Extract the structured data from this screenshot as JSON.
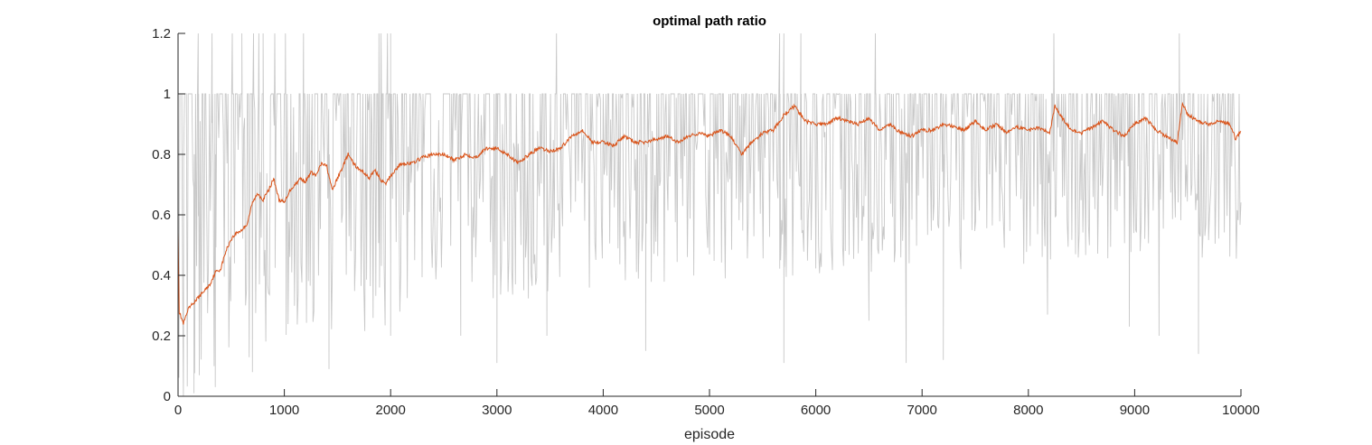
{
  "chart_data": {
    "type": "line",
    "title": "optimal path ratio",
    "xlabel": "episode",
    "ylabel": "",
    "xlim": [
      0,
      10000
    ],
    "ylim": [
      0,
      1.2
    ],
    "x_ticks": [
      0,
      1000,
      2000,
      3000,
      4000,
      5000,
      6000,
      7000,
      8000,
      9000,
      10000
    ],
    "y_ticks": [
      0,
      0.2,
      0.4,
      0.6,
      0.8,
      1,
      1.2
    ],
    "x_tick_labels": [
      "0",
      "1000",
      "2000",
      "3000",
      "4000",
      "5000",
      "6000",
      "7000",
      "8000",
      "9000",
      "10000"
    ],
    "y_tick_labels": [
      "0",
      "0.2",
      "0.4",
      "0.6",
      "0.8",
      "1",
      "1.2"
    ],
    "grid": false,
    "legend": "none",
    "series": [
      {
        "role": "raw",
        "color": "#c8c8c8",
        "envelope": {
          "x": [
            0,
            100,
            200,
            300,
            500,
            700,
            1000,
            1500,
            2000,
            2500,
            3000,
            4000,
            5000,
            6000,
            7000,
            8000,
            9000,
            10000
          ],
          "low": [
            0.02,
            0.02,
            0.03,
            0.05,
            0.08,
            0.12,
            0.15,
            0.2,
            0.22,
            0.28,
            0.3,
            0.35,
            0.38,
            0.4,
            0.42,
            0.42,
            0.45,
            0.45
          ],
          "high": [
            1,
            1,
            1,
            1,
            1,
            1,
            1,
            1,
            1,
            1,
            1,
            1,
            1,
            1,
            1,
            1,
            1,
            1
          ]
        },
        "spikes_above_1": [
          {
            "x": 190,
            "y": 1.2
          },
          {
            "x": 320,
            "y": 1.2
          },
          {
            "x": 510,
            "y": 1.2
          },
          {
            "x": 600,
            "y": 1.2
          },
          {
            "x": 710,
            "y": 1.2
          },
          {
            "x": 760,
            "y": 1.2
          },
          {
            "x": 800,
            "y": 1.2
          },
          {
            "x": 910,
            "y": 1.2
          },
          {
            "x": 1010,
            "y": 1.2
          },
          {
            "x": 1180,
            "y": 1.2
          },
          {
            "x": 1890,
            "y": 1.2
          },
          {
            "x": 1910,
            "y": 1.2
          },
          {
            "x": 1970,
            "y": 1.2
          },
          {
            "x": 2000,
            "y": 1.2
          },
          {
            "x": 3560,
            "y": 1.2
          },
          {
            "x": 5660,
            "y": 1.2
          },
          {
            "x": 5700,
            "y": 1.2
          },
          {
            "x": 5860,
            "y": 1.2
          },
          {
            "x": 6560,
            "y": 1.2
          },
          {
            "x": 8240,
            "y": 1.2
          },
          {
            "x": 9420,
            "y": 1.2
          }
        ],
        "deep_dips": [
          {
            "x": 50,
            "y": 0.0
          },
          {
            "x": 150,
            "y": 0.01
          },
          {
            "x": 350,
            "y": 0.03
          },
          {
            "x": 700,
            "y": 0.08
          },
          {
            "x": 1420,
            "y": 0.09
          },
          {
            "x": 2000,
            "y": 0.2
          },
          {
            "x": 2660,
            "y": 0.2
          },
          {
            "x": 3000,
            "y": 0.11
          },
          {
            "x": 3470,
            "y": 0.2
          },
          {
            "x": 4400,
            "y": 0.15
          },
          {
            "x": 5700,
            "y": 0.11
          },
          {
            "x": 6500,
            "y": 0.25
          },
          {
            "x": 6850,
            "y": 0.11
          },
          {
            "x": 7200,
            "y": 0.12
          },
          {
            "x": 8180,
            "y": 0.27
          },
          {
            "x": 8950,
            "y": 0.23
          },
          {
            "x": 9230,
            "y": 0.2
          },
          {
            "x": 9600,
            "y": 0.14
          }
        ]
      },
      {
        "role": "moving-average",
        "color": "#d95319",
        "x": [
          0,
          10,
          50,
          100,
          150,
          200,
          250,
          300,
          350,
          400,
          450,
          500,
          550,
          600,
          650,
          700,
          750,
          800,
          850,
          900,
          950,
          1000,
          1050,
          1100,
          1150,
          1200,
          1250,
          1300,
          1350,
          1400,
          1450,
          1500,
          1550,
          1600,
          1650,
          1700,
          1750,
          1800,
          1850,
          1900,
          1950,
          2000,
          2100,
          2200,
          2300,
          2400,
          2500,
          2600,
          2700,
          2800,
          2900,
          3000,
          3100,
          3200,
          3300,
          3400,
          3500,
          3600,
          3700,
          3800,
          3900,
          4000,
          4100,
          4200,
          4300,
          4400,
          4500,
          4600,
          4700,
          4800,
          4900,
          5000,
          5100,
          5200,
          5300,
          5400,
          5500,
          5600,
          5700,
          5800,
          5900,
          6000,
          6100,
          6200,
          6300,
          6400,
          6500,
          6600,
          6700,
          6800,
          6900,
          7000,
          7100,
          7200,
          7300,
          7400,
          7500,
          7600,
          7700,
          7800,
          7900,
          8000,
          8100,
          8200,
          8250,
          8300,
          8400,
          8500,
          8600,
          8700,
          8800,
          8900,
          9000,
          9100,
          9200,
          9300,
          9400,
          9450,
          9500,
          9600,
          9700,
          9800,
          9900,
          9950,
          10000
        ],
        "y": [
          0.55,
          0.28,
          0.24,
          0.29,
          0.31,
          0.33,
          0.35,
          0.37,
          0.41,
          0.42,
          0.48,
          0.52,
          0.54,
          0.55,
          0.57,
          0.64,
          0.67,
          0.65,
          0.68,
          0.72,
          0.65,
          0.64,
          0.68,
          0.7,
          0.72,
          0.71,
          0.74,
          0.73,
          0.77,
          0.76,
          0.68,
          0.72,
          0.76,
          0.8,
          0.77,
          0.75,
          0.74,
          0.72,
          0.75,
          0.72,
          0.7,
          0.73,
          0.77,
          0.77,
          0.79,
          0.8,
          0.8,
          0.78,
          0.8,
          0.79,
          0.82,
          0.82,
          0.8,
          0.77,
          0.8,
          0.82,
          0.81,
          0.82,
          0.86,
          0.88,
          0.84,
          0.84,
          0.83,
          0.86,
          0.84,
          0.84,
          0.85,
          0.86,
          0.84,
          0.86,
          0.87,
          0.86,
          0.88,
          0.86,
          0.8,
          0.84,
          0.87,
          0.88,
          0.93,
          0.96,
          0.91,
          0.9,
          0.9,
          0.92,
          0.91,
          0.9,
          0.92,
          0.88,
          0.9,
          0.87,
          0.86,
          0.88,
          0.88,
          0.9,
          0.89,
          0.88,
          0.91,
          0.88,
          0.9,
          0.87,
          0.89,
          0.88,
          0.89,
          0.87,
          0.96,
          0.93,
          0.88,
          0.87,
          0.89,
          0.91,
          0.88,
          0.86,
          0.9,
          0.92,
          0.88,
          0.86,
          0.84,
          0.97,
          0.93,
          0.91,
          0.9,
          0.91,
          0.9,
          0.85,
          0.88
        ]
      }
    ]
  }
}
